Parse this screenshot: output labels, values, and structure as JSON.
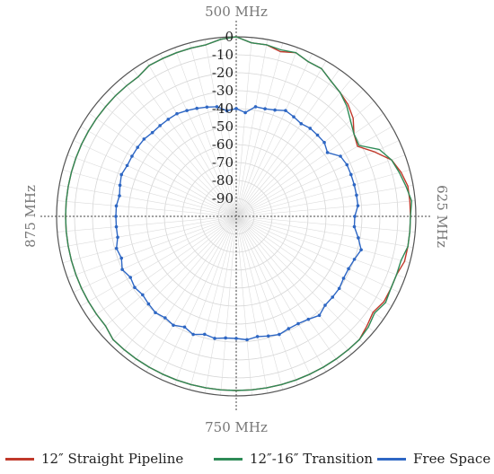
{
  "chart_data": {
    "type": "polar-line",
    "angle_labels": {
      "top": "500 MHz",
      "right": "625 MHz",
      "bottom": "750 MHz",
      "left": "875 MHz"
    },
    "radial_ticks": [
      0,
      -10,
      -20,
      -30,
      -40,
      -50,
      -60,
      -70,
      -80,
      -90
    ],
    "radial_range": [
      -100,
      0
    ],
    "angle_step_deg": 5,
    "grid": true,
    "legend_position": "bottom",
    "series": [
      {
        "name": "12″ Straight Pipeline",
        "color": "#c0392b",
        "points": [
          [
            0,
            0
          ],
          [
            5,
            -3
          ],
          [
            10,
            -3
          ],
          [
            15,
            -5
          ],
          [
            20,
            -3
          ],
          [
            25,
            -5
          ],
          [
            30,
            -5
          ],
          [
            35,
            -8
          ],
          [
            40,
            -10
          ],
          [
            45,
            -12
          ],
          [
            50,
            -15
          ],
          [
            55,
            -20
          ],
          [
            60,
            -22
          ],
          [
            65,
            -15
          ],
          [
            70,
            -8
          ],
          [
            75,
            -5
          ],
          [
            80,
            -3
          ],
          [
            85,
            -3
          ],
          [
            90,
            -3
          ],
          [
            95,
            -3
          ],
          [
            100,
            -3
          ],
          [
            105,
            -3
          ],
          [
            110,
            -5
          ],
          [
            115,
            -5
          ],
          [
            120,
            -5
          ],
          [
            125,
            -7
          ],
          [
            130,
            -5
          ],
          [
            135,
            -3
          ],
          [
            140,
            -3
          ],
          [
            145,
            -3
          ],
          [
            150,
            -3
          ],
          [
            155,
            -3
          ],
          [
            160,
            -3
          ],
          [
            165,
            -3
          ],
          [
            170,
            -3
          ],
          [
            175,
            -3
          ],
          [
            180,
            -3
          ],
          [
            185,
            -3
          ],
          [
            190,
            -3
          ],
          [
            195,
            -3
          ],
          [
            200,
            -3
          ],
          [
            205,
            -3
          ],
          [
            210,
            -3
          ],
          [
            215,
            -3
          ],
          [
            220,
            -3
          ],
          [
            225,
            -3
          ],
          [
            230,
            -5
          ],
          [
            235,
            -5
          ],
          [
            240,
            -5
          ],
          [
            245,
            -5
          ],
          [
            250,
            -5
          ],
          [
            255,
            -5
          ],
          [
            260,
            -5
          ],
          [
            265,
            -5
          ],
          [
            270,
            -5
          ],
          [
            275,
            -5
          ],
          [
            280,
            -5
          ],
          [
            285,
            -5
          ],
          [
            290,
            -5
          ],
          [
            295,
            -5
          ],
          [
            300,
            -5
          ],
          [
            305,
            -5
          ],
          [
            310,
            -5
          ],
          [
            315,
            -5
          ],
          [
            320,
            -5
          ],
          [
            325,
            -5
          ],
          [
            330,
            -3
          ],
          [
            335,
            -3
          ],
          [
            340,
            -3
          ],
          [
            345,
            -3
          ],
          [
            350,
            -3
          ],
          [
            355,
            -1
          ],
          [
            360,
            0
          ]
        ]
      },
      {
        "name": "12″-16″ Transition",
        "color": "#2e8b57",
        "points": [
          [
            0,
            0
          ],
          [
            5,
            -3
          ],
          [
            10,
            -3
          ],
          [
            15,
            -4
          ],
          [
            20,
            -3
          ],
          [
            25,
            -5
          ],
          [
            30,
            -5
          ],
          [
            35,
            -8
          ],
          [
            40,
            -10
          ],
          [
            45,
            -13
          ],
          [
            50,
            -17
          ],
          [
            55,
            -20
          ],
          [
            60,
            -21
          ],
          [
            65,
            -12
          ],
          [
            70,
            -8
          ],
          [
            75,
            -6
          ],
          [
            80,
            -4
          ],
          [
            85,
            -2
          ],
          [
            90,
            -3
          ],
          [
            95,
            -3
          ],
          [
            100,
            -3
          ],
          [
            105,
            -5
          ],
          [
            110,
            -5
          ],
          [
            115,
            -5
          ],
          [
            120,
            -4
          ],
          [
            125,
            -6
          ],
          [
            130,
            -4
          ],
          [
            135,
            -3
          ],
          [
            140,
            -3
          ],
          [
            145,
            -3
          ],
          [
            150,
            -3
          ],
          [
            155,
            -3
          ],
          [
            160,
            -3
          ],
          [
            165,
            -3
          ],
          [
            170,
            -3
          ],
          [
            175,
            -3
          ],
          [
            180,
            -3
          ],
          [
            185,
            -3
          ],
          [
            190,
            -3
          ],
          [
            195,
            -3
          ],
          [
            200,
            -3
          ],
          [
            205,
            -3
          ],
          [
            210,
            -3
          ],
          [
            215,
            -3
          ],
          [
            220,
            -3
          ],
          [
            225,
            -3
          ],
          [
            230,
            -5
          ],
          [
            235,
            -5
          ],
          [
            240,
            -5
          ],
          [
            245,
            -5
          ],
          [
            250,
            -5
          ],
          [
            255,
            -5
          ],
          [
            260,
            -5
          ],
          [
            265,
            -5
          ],
          [
            270,
            -5
          ],
          [
            275,
            -5
          ],
          [
            280,
            -5
          ],
          [
            285,
            -5
          ],
          [
            290,
            -5
          ],
          [
            295,
            -5
          ],
          [
            300,
            -5
          ],
          [
            305,
            -5
          ],
          [
            310,
            -5
          ],
          [
            315,
            -5
          ],
          [
            320,
            -5
          ],
          [
            325,
            -5
          ],
          [
            330,
            -3
          ],
          [
            335,
            -3
          ],
          [
            340,
            -3
          ],
          [
            345,
            -3
          ],
          [
            350,
            -3
          ],
          [
            355,
            -1
          ],
          [
            360,
            0
          ]
        ]
      },
      {
        "name": "Free Space",
        "color": "#2e67c4",
        "points": [
          [
            0,
            -40
          ],
          [
            5,
            -42
          ],
          [
            10,
            -38
          ],
          [
            15,
            -38
          ],
          [
            20,
            -37
          ],
          [
            25,
            -35
          ],
          [
            30,
            -36
          ],
          [
            35,
            -37
          ],
          [
            40,
            -36
          ],
          [
            45,
            -36
          ],
          [
            50,
            -36
          ],
          [
            55,
            -38
          ],
          [
            60,
            -33
          ],
          [
            65,
            -32
          ],
          [
            70,
            -32
          ],
          [
            75,
            -32
          ],
          [
            80,
            -32
          ],
          [
            85,
            -32
          ],
          [
            90,
            -34
          ],
          [
            95,
            -34
          ],
          [
            100,
            -31
          ],
          [
            105,
            -28
          ],
          [
            110,
            -30
          ],
          [
            115,
            -31
          ],
          [
            120,
            -31
          ],
          [
            125,
            -30
          ],
          [
            130,
            -30
          ],
          [
            135,
            -30
          ],
          [
            140,
            -28
          ],
          [
            145,
            -30
          ],
          [
            150,
            -31
          ],
          [
            155,
            -31
          ],
          [
            160,
            -30
          ],
          [
            165,
            -31
          ],
          [
            170,
            -32
          ],
          [
            175,
            -31
          ],
          [
            180,
            -32
          ],
          [
            185,
            -32
          ],
          [
            190,
            -31
          ],
          [
            195,
            -32
          ],
          [
            200,
            -30
          ],
          [
            205,
            -32
          ],
          [
            210,
            -30
          ],
          [
            215,
            -31
          ],
          [
            220,
            -30
          ],
          [
            225,
            -31
          ],
          [
            230,
            -32
          ],
          [
            235,
            -31
          ],
          [
            240,
            -32
          ],
          [
            245,
            -30
          ],
          [
            250,
            -32
          ],
          [
            255,
            -31
          ],
          [
            260,
            -33
          ],
          [
            265,
            -33
          ],
          [
            270,
            -33
          ],
          [
            275,
            -33
          ],
          [
            280,
            -34
          ],
          [
            285,
            -33
          ],
          [
            290,
            -32
          ],
          [
            295,
            -33
          ],
          [
            300,
            -33
          ],
          [
            305,
            -33
          ],
          [
            310,
            -33
          ],
          [
            315,
            -34
          ],
          [
            320,
            -34
          ],
          [
            325,
            -34
          ],
          [
            330,
            -34
          ],
          [
            335,
            -35
          ],
          [
            340,
            -36
          ],
          [
            345,
            -37
          ],
          [
            350,
            -38
          ],
          [
            355,
            -41
          ],
          [
            360,
            -40
          ]
        ]
      }
    ]
  }
}
